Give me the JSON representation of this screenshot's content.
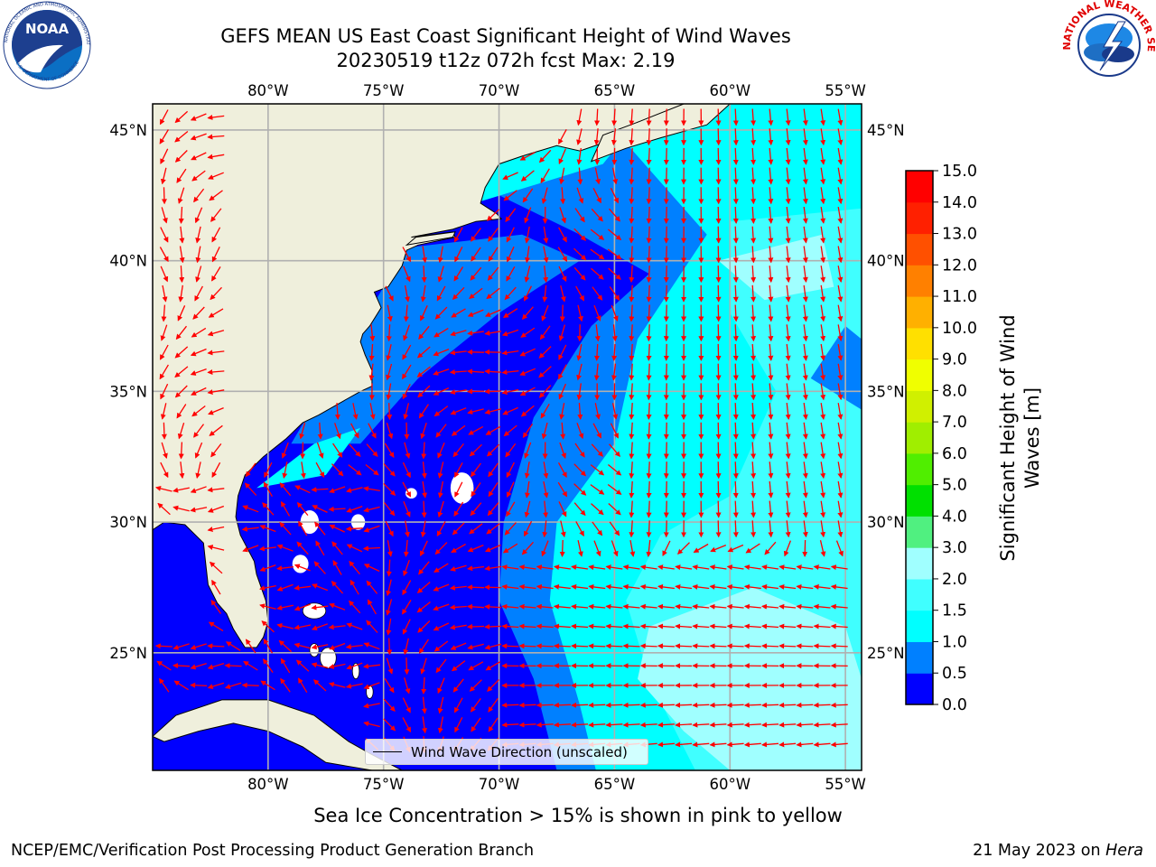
{
  "header": {
    "title_line1": "GEFS MEAN US East Coast Significant Height of Wind Waves",
    "title_line2": "20230519 t12z 072h fcst   Max: 2.19"
  },
  "logos": {
    "noaa_text": "NOAA",
    "noaa_ring_text": "NATIONAL OCEANIC AND ATMOSPHERIC ADMINISTRATION",
    "noaa_ring_text_bottom": "U.S. DEPARTMENT OF COMMERCE",
    "nws_ring_text": "NATIONAL WEATHER SERVICE"
  },
  "map": {
    "lon_labels": [
      "80°W",
      "75°W",
      "70°W",
      "65°W",
      "60°W",
      "55°W"
    ],
    "lat_labels": [
      "45°N",
      "40°N",
      "35°N",
      "30°N",
      "25°N"
    ],
    "lon_range": [
      -85,
      -54.3
    ],
    "lat_range": [
      20.5,
      46
    ],
    "land_color": "#efefdc",
    "ocean_colors": {
      "0.0-0.5": "#0000ff",
      "0.5-1.0": "#0080ff",
      "1.0-1.5": "#00ffff",
      "1.5-2.0": "#40ffff",
      "2.0-3.0": "#a0ffff"
    },
    "arrow_color": "#ff0000",
    "legend_label": "Wind Wave Direction (unscaled)"
  },
  "colorbar": {
    "label": "Significant Height of Wind Waves [m]",
    "ticks": [
      "0.0",
      "0.5",
      "1.0",
      "1.5",
      "2.0",
      "3.0",
      "4.0",
      "5.0",
      "6.0",
      "7.0",
      "8.0",
      "9.0",
      "10.0",
      "11.0",
      "12.0",
      "13.0",
      "14.0",
      "15.0"
    ],
    "colors": [
      "#0000ff",
      "#0080ff",
      "#00ffff",
      "#40ffff",
      "#a0ffff",
      "#50f080",
      "#00e000",
      "#50ee00",
      "#a0ee00",
      "#d0f000",
      "#f0ff00",
      "#ffe000",
      "#ffb000",
      "#ff8000",
      "#ff5000",
      "#ff2000",
      "#ff0000"
    ]
  },
  "notes": {
    "sea_ice": "Sea Ice Concentration > 15% is shown in pink to yellow",
    "footer_left": "NCEP/EMC/Verification Post Processing Product Generation Branch",
    "footer_right_date": "21 May 2023 on ",
    "footer_right_machine": "Hera"
  }
}
